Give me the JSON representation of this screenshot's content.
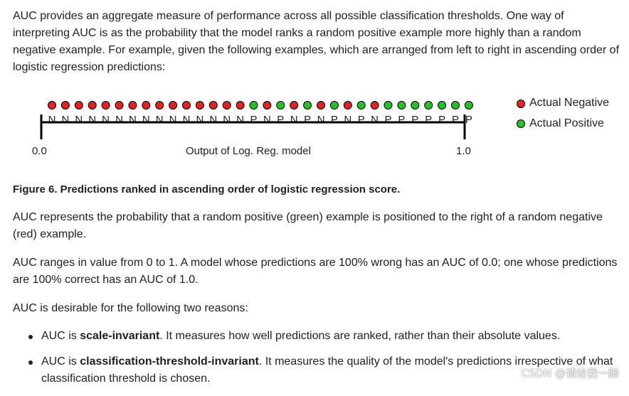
{
  "intro": "AUC provides an aggregate measure of performance across all possible classification thresholds. One way of interpreting AUC is as the probability that the model ranks a random positive example more highly than a random negative example. For example, given the following examples, which are arranged from left to right in ascending order of logistic regression predictions:",
  "figure": {
    "labels": [
      "N",
      "N",
      "N",
      "N",
      "N",
      "N",
      "N",
      "N",
      "N",
      "N",
      "N",
      "N",
      "N",
      "N",
      "N",
      "P",
      "N",
      "P",
      "N",
      "P",
      "N",
      "P",
      "N",
      "P",
      "N",
      "P",
      "P",
      "P",
      "P",
      "P",
      "P",
      "P"
    ],
    "colors": {
      "negative": "#e82020",
      "positive": "#22c422",
      "outline": "#000000"
    },
    "axis_start": "0.0",
    "axis_end": "1.0",
    "axis_title": "Output of Log. Reg. model",
    "legend": [
      {
        "label": "Actual Negative",
        "class": "N"
      },
      {
        "label": "Actual Positive",
        "class": "P"
      }
    ]
  },
  "caption": "Figure 6. Predictions ranked in ascending order of logistic regression score.",
  "auc_def": "AUC represents the probability that a random positive (green) example is positioned to the right of a random negative (red) example.",
  "auc_range": "AUC ranges in value from 0 to 1. A model whose predictions are 100% wrong has an AUC of 0.0; one whose predictions are 100% correct has an AUC of 1.0.",
  "reasons_intro": "AUC is desirable for the following two reasons:",
  "reasons": [
    {
      "bold": "scale-invariant",
      "prefix": "AUC is ",
      "rest": ". It measures how well predictions are ranked, rather than their absolute values."
    },
    {
      "bold": "classification-threshold-invariant",
      "prefix": "AUC is ",
      "rest": ". It measures the quality of the model's predictions irrespective of what classification threshold is chosen."
    }
  ],
  "watermark": "CSDN @请给我一脚"
}
